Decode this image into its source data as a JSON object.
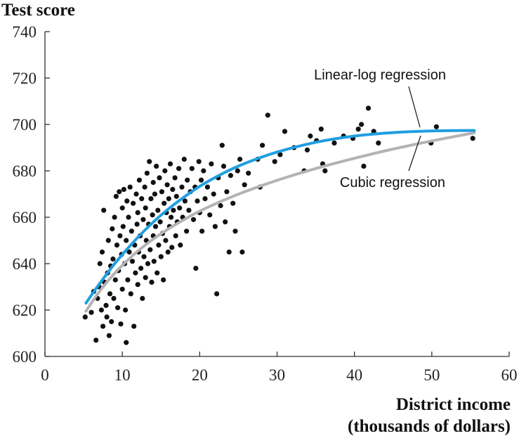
{
  "chart_data": {
    "type": "scatter",
    "ylabel": "Test score",
    "xlabel_line1": "District income",
    "xlabel_line2": "(thousands of dollars)",
    "xlim": [
      0,
      60
    ],
    "ylim": [
      600,
      740
    ],
    "x_ticks": [
      0,
      10,
      20,
      30,
      40,
      50,
      60
    ],
    "y_ticks": [
      600,
      620,
      640,
      660,
      680,
      700,
      720,
      740
    ],
    "grid": false,
    "annotations": [
      {
        "text": "Linear-log regression",
        "points_to": "Linear-log regression"
      },
      {
        "text": "Cubic regression",
        "points_to": "Cubic regression"
      }
    ],
    "curves": [
      {
        "name": "Linear-log regression",
        "color": "#b3b3b3",
        "x": [
          5.3,
          7,
          9,
          11,
          13,
          15,
          17,
          20,
          23,
          26,
          30,
          35,
          40,
          45,
          50,
          55.5
        ],
        "y": [
          619.5,
          627.8,
          635.8,
          642.5,
          648.1,
          652.9,
          657.1,
          662.6,
          667.2,
          671.2,
          675.9,
          681.0,
          685.4,
          689.4,
          692.9,
          696.4
        ]
      },
      {
        "name": "Cubic regression",
        "color": "#1f9ee0",
        "x": [
          5.3,
          7,
          9,
          11,
          13,
          15,
          17,
          20,
          23,
          26,
          30,
          35,
          40,
          45,
          50,
          55.5
        ],
        "y": [
          623.0,
          631.1,
          639.9,
          647.7,
          654.7,
          660.9,
          666.3,
          673.3,
          678.9,
          683.4,
          688.1,
          692.3,
          695.0,
          696.5,
          697.2,
          697.4
        ]
      }
    ],
    "points": [
      [
        5.2,
        617
      ],
      [
        6.0,
        619
      ],
      [
        6.3,
        628
      ],
      [
        6.6,
        607
      ],
      [
        6.8,
        625
      ],
      [
        7.0,
        630
      ],
      [
        7.1,
        640
      ],
      [
        7.3,
        620
      ],
      [
        7.4,
        645
      ],
      [
        7.5,
        613
      ],
      [
        7.6,
        663
      ],
      [
        7.7,
        632
      ],
      [
        7.9,
        622
      ],
      [
        8.0,
        617
      ],
      [
        8.1,
        636
      ],
      [
        8.2,
        650
      ],
      [
        8.3,
        609
      ],
      [
        8.4,
        627
      ],
      [
        8.5,
        639
      ],
      [
        8.6,
        615
      ],
      [
        8.7,
        655
      ],
      [
        8.8,
        642
      ],
      [
        8.9,
        625
      ],
      [
        9.0,
        660
      ],
      [
        9.1,
        633
      ],
      [
        9.2,
        669
      ],
      [
        9.3,
        648
      ],
      [
        9.4,
        621
      ],
      [
        9.5,
        637
      ],
      [
        9.6,
        671
      ],
      [
        9.7,
        652
      ],
      [
        9.8,
        614
      ],
      [
        9.9,
        644
      ],
      [
        10.0,
        629
      ],
      [
        10.0,
        664
      ],
      [
        10.1,
        656
      ],
      [
        10.2,
        672
      ],
      [
        10.3,
        640
      ],
      [
        10.4,
        620
      ],
      [
        10.5,
        606
      ],
      [
        10.5,
        650
      ],
      [
        10.6,
        667
      ],
      [
        10.7,
        633
      ],
      [
        10.8,
        660
      ],
      [
        10.9,
        645
      ],
      [
        11.0,
        673
      ],
      [
        11.1,
        627
      ],
      [
        11.2,
        654
      ],
      [
        11.3,
        641
      ],
      [
        11.4,
        666
      ],
      [
        11.5,
        613
      ],
      [
        11.6,
        648
      ],
      [
        11.7,
        636
      ],
      [
        11.8,
        670
      ],
      [
        11.9,
        657
      ],
      [
        12.0,
        631
      ],
      [
        12.0,
        662
      ],
      [
        12.1,
        645
      ],
      [
        12.2,
        676
      ],
      [
        12.3,
        652
      ],
      [
        12.4,
        638
      ],
      [
        12.5,
        668
      ],
      [
        12.6,
        625
      ],
      [
        12.7,
        659
      ],
      [
        12.8,
        643
      ],
      [
        12.9,
        673
      ],
      [
        13.0,
        634
      ],
      [
        13.0,
        664
      ],
      [
        13.1,
        650
      ],
      [
        13.2,
        679
      ],
      [
        13.3,
        640
      ],
      [
        13.4,
        657
      ],
      [
        13.5,
        684
      ],
      [
        13.6,
        646
      ],
      [
        13.7,
        668
      ],
      [
        13.8,
        632
      ],
      [
        13.9,
        661
      ],
      [
        14.0,
        675
      ],
      [
        14.0,
        652
      ],
      [
        14.1,
        641
      ],
      [
        14.2,
        670
      ],
      [
        14.3,
        656
      ],
      [
        14.4,
        682
      ],
      [
        14.5,
        636
      ],
      [
        14.6,
        663
      ],
      [
        14.7,
        648
      ],
      [
        14.8,
        677
      ],
      [
        14.9,
        658
      ],
      [
        15.0,
        643
      ],
      [
        15.1,
        671
      ],
      [
        15.2,
        653
      ],
      [
        15.3,
        633
      ],
      [
        15.4,
        666
      ],
      [
        15.5,
        680
      ],
      [
        15.6,
        650
      ],
      [
        15.7,
        662
      ],
      [
        15.8,
        674
      ],
      [
        15.9,
        645
      ],
      [
        16.0,
        668
      ],
      [
        16.1,
        656
      ],
      [
        16.2,
        683
      ],
      [
        16.3,
        660
      ],
      [
        16.4,
        647
      ],
      [
        16.5,
        672
      ],
      [
        16.6,
        663
      ],
      [
        16.8,
        677
      ],
      [
        16.9,
        652
      ],
      [
        17.0,
        669
      ],
      [
        17.1,
        658
      ],
      [
        17.3,
        681
      ],
      [
        17.4,
        664
      ],
      [
        17.5,
        648
      ],
      [
        17.7,
        673
      ],
      [
        17.8,
        660
      ],
      [
        18.0,
        685
      ],
      [
        18.1,
        667
      ],
      [
        18.3,
        654
      ],
      [
        18.4,
        676
      ],
      [
        18.6,
        663
      ],
      [
        18.8,
        671
      ],
      [
        19.0,
        681
      ],
      [
        19.2,
        659
      ],
      [
        19.4,
        673
      ],
      [
        19.5,
        638
      ],
      [
        19.7,
        667
      ],
      [
        19.9,
        684
      ],
      [
        20.0,
        662
      ],
      [
        20.2,
        676
      ],
      [
        20.3,
        654
      ],
      [
        20.5,
        680
      ],
      [
        20.7,
        668
      ],
      [
        21.0,
        673
      ],
      [
        21.3,
        661
      ],
      [
        21.5,
        683
      ],
      [
        21.8,
        670
      ],
      [
        22.0,
        656
      ],
      [
        22.2,
        627
      ],
      [
        22.4,
        677
      ],
      [
        22.7,
        665
      ],
      [
        22.9,
        691
      ],
      [
        23.1,
        682
      ],
      [
        23.3,
        658
      ],
      [
        23.5,
        671
      ],
      [
        23.8,
        645
      ],
      [
        24.0,
        678
      ],
      [
        24.3,
        666
      ],
      [
        24.6,
        654
      ],
      [
        24.9,
        680
      ],
      [
        25.2,
        685
      ],
      [
        25.5,
        645
      ],
      [
        25.8,
        674
      ],
      [
        26.3,
        679
      ],
      [
        27.5,
        685
      ],
      [
        27.8,
        673
      ],
      [
        28.1,
        691
      ],
      [
        28.8,
        704
      ],
      [
        29.7,
        684
      ],
      [
        30.4,
        687
      ],
      [
        31.0,
        697
      ],
      [
        32.2,
        690
      ],
      [
        33.5,
        680
      ],
      [
        33.9,
        689
      ],
      [
        34.3,
        695
      ],
      [
        35.1,
        693
      ],
      [
        35.7,
        698
      ],
      [
        35.9,
        683
      ],
      [
        36.2,
        680
      ],
      [
        37.4,
        692
      ],
      [
        38.6,
        695
      ],
      [
        39.8,
        694
      ],
      [
        40.5,
        698
      ],
      [
        40.9,
        700
      ],
      [
        41.2,
        682
      ],
      [
        41.8,
        707
      ],
      [
        42.5,
        697
      ],
      [
        43.1,
        692
      ],
      [
        49.9,
        692
      ],
      [
        50.6,
        699
      ],
      [
        55.3,
        694
      ]
    ]
  }
}
